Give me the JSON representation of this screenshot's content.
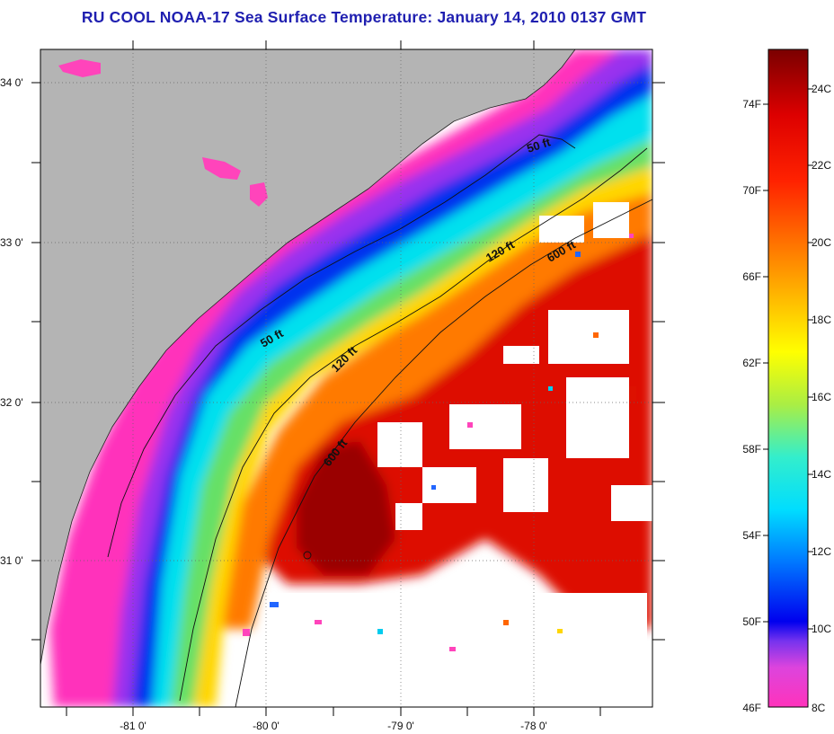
{
  "title": "RU COOL  NOAA-17  Sea Surface Temperature:  January 14, 2010 0137 GMT",
  "lat_labels": [
    "34 0'",
    "33 0'",
    "32 0'",
    "31 0'"
  ],
  "lon_labels": [
    "-81 0'",
    "-80 0'",
    "-79 0'",
    "-78 0'"
  ],
  "contour_labels": {
    "c50_north": "50 ft",
    "c120_north": "120 ft",
    "c600_north": "600 ft",
    "c50_south": "50 ft",
    "c120_south": "120 ft",
    "c600_south": "600 ft"
  },
  "colorbar": {
    "f_labels": [
      "74F",
      "70F",
      "66F",
      "62F",
      "58F",
      "54F",
      "50F",
      "46F"
    ],
    "c_labels": [
      "24C",
      "22C",
      "20C",
      "18C",
      "16C",
      "14C",
      "12C",
      "10C",
      "8C"
    ]
  },
  "colors": {
    "land": "#b4b4b4",
    "title": "#1f1fb0",
    "cloud": "#ffffff"
  }
}
